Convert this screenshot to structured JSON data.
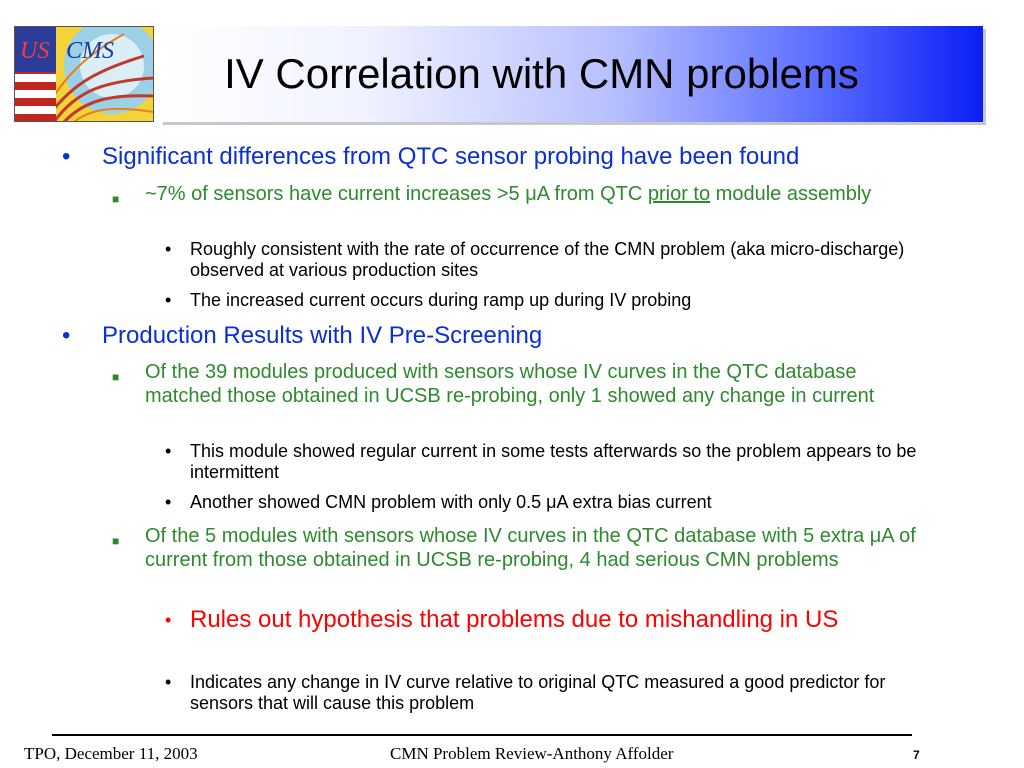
{
  "logo": {
    "text_us": "US",
    "text_cms": "CMS"
  },
  "title": "IV Correlation with CMN problems",
  "bullets": [
    {
      "level": 1,
      "bullet": "•",
      "text": "Significant differences from QTC sensor probing have been found"
    },
    {
      "level": 2,
      "bullet": "■",
      "text_before": "~7% of sensors have current increases >5 μA from QTC ",
      "text_underline": "prior to",
      "text_after": " module assembly"
    },
    {
      "level": 3,
      "bullet": "•",
      "text": "Roughly consistent with the rate of occurrence of the CMN problem (aka micro-discharge) observed at various production sites"
    },
    {
      "level": 3,
      "bullet": "•",
      "text": "The increased current occurs during ramp up during IV probing"
    },
    {
      "level": 1,
      "bullet": "•",
      "text": "Production Results with IV Pre-Screening"
    },
    {
      "level": 2,
      "bullet": "■",
      "text": "Of the 39 modules produced with sensors whose IV curves in the QTC database matched those obtained in UCSB re-probing, only 1 showed any change in current"
    },
    {
      "level": 3,
      "bullet": "•",
      "text": "This module showed regular current in some tests afterwards so the problem appears to be intermittent"
    },
    {
      "level": 3,
      "bullet": "•",
      "text": "Another showed CMN problem with only 0.5 μA extra bias current"
    },
    {
      "level": 2,
      "bullet": "■",
      "text": "Of the 5 modules with sensors whose IV curves in the QTC database with 5 extra μA of current from those obtained in UCSB re-probing, 4 had serious CMN problems"
    },
    {
      "level": 3,
      "bullet": "•",
      "text": "Rules out hypothesis that problems due to mishandling in US",
      "color": "#ff0000"
    },
    {
      "level": 3,
      "bullet": "•",
      "text": "Indicates any change in IV curve relative to original QTC measured a good predictor for sensors that will cause this problem"
    }
  ],
  "footer": {
    "left": "TPO, December 11, 2003",
    "center": "CMN Problem Review-Anthony Affolder",
    "page": "7"
  }
}
